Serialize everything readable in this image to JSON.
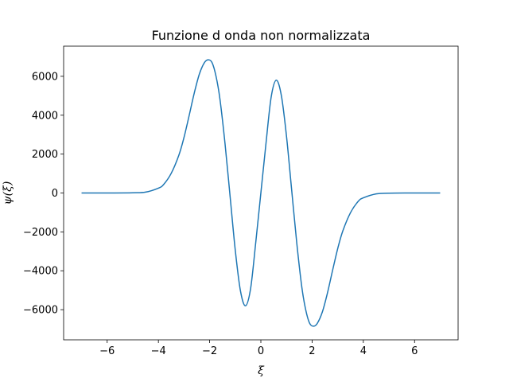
{
  "chart_data": {
    "type": "line",
    "title": "Funzione d onda non normalizzata",
    "xlabel": "ξ",
    "ylabel": "ψ(ξ)",
    "xlim": [
      -7.7,
      7.7
    ],
    "ylim": [
      -7550,
      7550
    ],
    "xticks": [
      -6,
      -4,
      -2,
      0,
      2,
      4,
      6
    ],
    "xtick_labels": [
      "−6",
      "−4",
      "−2",
      "0",
      "2",
      "4",
      "6"
    ],
    "yticks": [
      -6000,
      -4000,
      -2000,
      0,
      2000,
      4000,
      6000
    ],
    "ytick_labels": [
      "−6000",
      "−4000",
      "−2000",
      "0",
      "2000",
      "4000",
      "6000"
    ],
    "grid": false,
    "legend": "none",
    "series": [
      {
        "color": "#1f77b4",
        "x": [
          -7.0,
          -6.0,
          -5.0,
          -4.5,
          -4.0,
          -3.8,
          -3.5,
          -3.2,
          -3.0,
          -2.8,
          -2.6,
          -2.4,
          -2.2,
          -2.05,
          -1.9,
          -1.75,
          -1.6,
          -1.4,
          -1.2,
          -1.0,
          -0.8,
          -0.6,
          -0.4,
          -0.2,
          0.0,
          0.2,
          0.4,
          0.6,
          0.8,
          1.0,
          1.2,
          1.4,
          1.6,
          1.75,
          1.9,
          2.05,
          2.2,
          2.4,
          2.6,
          2.8,
          3.0,
          3.2,
          3.5,
          3.8,
          4.0,
          4.5,
          5.0,
          6.0,
          7.0
        ],
        "y": [
          0,
          0,
          10,
          45,
          250,
          430,
          1010,
          1950,
          2860,
          3980,
          5140,
          6120,
          6710,
          6850,
          6690,
          6000,
          4850,
          2550,
          -190,
          -2930,
          -5010,
          -5800,
          -4910,
          -2550,
          0,
          2550,
          4910,
          5800,
          5010,
          2930,
          190,
          -2550,
          -4850,
          -6000,
          -6690,
          -6850,
          -6710,
          -6120,
          -5140,
          -3980,
          -2860,
          -1950,
          -1010,
          -430,
          -250,
          -45,
          -10,
          0,
          0
        ]
      }
    ]
  }
}
